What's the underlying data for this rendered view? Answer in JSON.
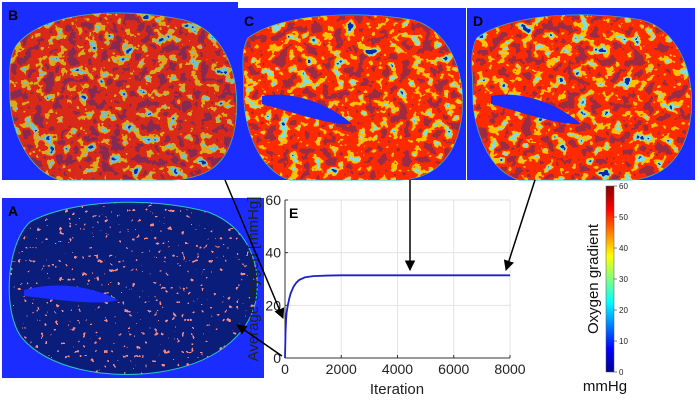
{
  "panels": {
    "a_label": "A",
    "b_label": "B",
    "c_label": "C",
    "d_label": "D",
    "e_label": "E"
  },
  "colors": {
    "map_background": "#1a2cff",
    "tissue_dark": "#0b1d7a",
    "cell_red": "#e8423a",
    "line_series": "#1f1fd0",
    "arrow": "#000000"
  },
  "colorbar": {
    "label": "Oxygen gradient",
    "unit": "mmHg",
    "min": 0,
    "max": 60,
    "ticks": [
      "0",
      "10",
      "20",
      "30",
      "40",
      "50",
      "60"
    ],
    "colormap": "jet"
  },
  "chart_data": {
    "type": "line",
    "title": "",
    "xlabel": "Iteration",
    "ylabel": "Average oxygen [mmHg]",
    "xlim": [
      0,
      8000
    ],
    "ylim": [
      0,
      60
    ],
    "xticks": [
      "0",
      "2000",
      "4000",
      "6000",
      "8000"
    ],
    "yticks": [
      "0",
      "20",
      "40",
      "60"
    ],
    "grid": true,
    "series": [
      {
        "x": [
          0,
          20,
          40,
          60,
          100,
          150,
          200,
          300,
          400,
          500,
          700,
          1000,
          1500,
          2000,
          3000,
          4000,
          5000,
          6000,
          7000,
          8000
        ],
        "y": [
          0,
          10,
          15,
          17.5,
          20,
          22.5,
          24.5,
          27,
          28.6,
          29.6,
          30.6,
          31.1,
          31.3,
          31.4,
          31.4,
          31.4,
          31.4,
          31.4,
          31.4,
          31.4
        ]
      }
    ]
  }
}
